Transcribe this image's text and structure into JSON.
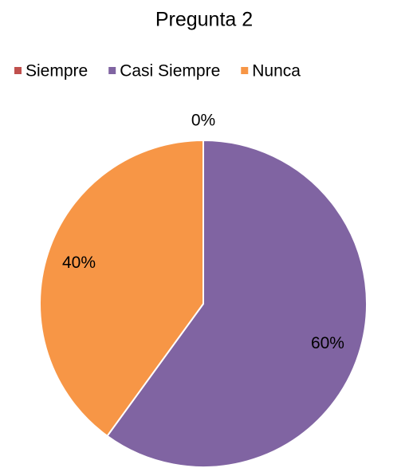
{
  "chart_data": {
    "type": "pie",
    "title": "Pregunta 2",
    "categories": [
      "Siempre",
      "Casi Siempre",
      "Nunca"
    ],
    "values": [
      0,
      60,
      40
    ],
    "value_labels": [
      "0%",
      "60%",
      "40%"
    ],
    "colors": [
      "#c0504d",
      "#8064a2",
      "#f79646"
    ],
    "legend": "top"
  }
}
